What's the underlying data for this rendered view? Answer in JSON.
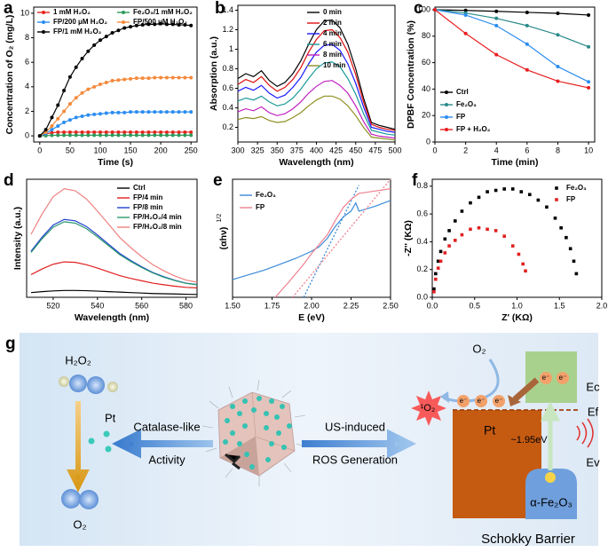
{
  "chart_data": [
    {
      "panel": "a",
      "type": "line",
      "marker": "circle",
      "xlabel": "Time (s)",
      "ylabel": "Concentration of O₂ (mg/L)",
      "x": [
        0,
        10,
        20,
        30,
        40,
        50,
        60,
        70,
        80,
        90,
        100,
        110,
        120,
        130,
        140,
        150,
        160,
        170,
        180,
        190,
        200,
        210,
        220,
        230,
        240,
        250
      ],
      "xlim": [
        -10,
        260
      ],
      "ylim": [
        -0.5,
        10.5
      ],
      "xticks": [
        0,
        50,
        100,
        150,
        200,
        250
      ],
      "yticks": [
        0,
        2,
        4,
        6,
        8,
        10
      ],
      "series": [
        {
          "name": "1 mM H₂O₂",
          "color": "#e8251e",
          "values": [
            0,
            0.15,
            0.25,
            0.3,
            0.3,
            0.3,
            0.3,
            0.3,
            0.3,
            0.3,
            0.3,
            0.3,
            0.3,
            0.3,
            0.3,
            0.3,
            0.3,
            0.3,
            0.3,
            0.3,
            0.3,
            0.3,
            0.3,
            0.3,
            0.3,
            0.3
          ]
        },
        {
          "name": "Fe₂O₃/1 mM H₂O₂",
          "color": "#2e9b5a",
          "values": [
            0,
            0.02,
            0.04,
            0.05,
            0.05,
            0.05,
            0.05,
            0.05,
            0.05,
            0.05,
            0.05,
            0.05,
            0.05,
            0.05,
            0.05,
            0.05,
            0.05,
            0.05,
            0.05,
            0.05,
            0.05,
            0.05,
            0.05,
            0.05,
            0.05,
            0.05
          ]
        },
        {
          "name": "FP/200 μM H₂O₂",
          "color": "#2a8cf0",
          "values": [
            0,
            0.2,
            0.5,
            0.8,
            1.1,
            1.3,
            1.5,
            1.6,
            1.7,
            1.75,
            1.8,
            1.85,
            1.9,
            1.9,
            1.9,
            1.95,
            1.95,
            1.95,
            1.95,
            1.95,
            1.95,
            1.95,
            1.95,
            1.95,
            1.95,
            1.95
          ]
        },
        {
          "name": "FP/500 μM H₂O₂",
          "color": "#f48a3c",
          "values": [
            0,
            0.3,
            0.8,
            1.4,
            2.0,
            2.6,
            3.1,
            3.5,
            3.8,
            4.0,
            4.2,
            4.35,
            4.5,
            4.55,
            4.6,
            4.65,
            4.7,
            4.7,
            4.7,
            4.75,
            4.75,
            4.75,
            4.75,
            4.75,
            4.75,
            4.75
          ]
        },
        {
          "name": "FP/1 mM H₂O₂",
          "color": "#000000",
          "values": [
            0,
            0.5,
            1.5,
            2.5,
            3.7,
            4.8,
            5.6,
            6.3,
            6.9,
            7.4,
            7.8,
            8.1,
            8.4,
            8.6,
            8.8,
            8.9,
            9.0,
            9.05,
            9.1,
            9.1,
            9.15,
            9.1,
            9.1,
            9.05,
            9.05,
            9.0
          ]
        }
      ]
    },
    {
      "panel": "b",
      "type": "line",
      "xlabel": "Wavelength (nm)",
      "ylabel": "Absorption (a.u.)",
      "x": [
        300,
        310,
        320,
        330,
        340,
        350,
        360,
        370,
        380,
        390,
        400,
        410,
        420,
        430,
        440,
        450,
        460,
        470,
        480,
        490,
        500
      ],
      "xlim": [
        300,
        500
      ],
      "ylim": [
        0.05,
        1.45
      ],
      "xticks": [
        300,
        325,
        350,
        375,
        400,
        425,
        450,
        475,
        500
      ],
      "yticks": [
        0.2,
        0.4,
        0.6,
        0.8,
        1.0,
        1.2,
        1.4
      ],
      "series": [
        {
          "name": "0 min",
          "color": "#000000",
          "values": [
            0.7,
            0.75,
            0.72,
            0.78,
            0.68,
            0.62,
            0.66,
            0.75,
            0.88,
            1.05,
            1.2,
            1.29,
            1.3,
            1.22,
            1.05,
            0.8,
            0.5,
            0.25,
            0.22,
            0.2,
            0.18
          ]
        },
        {
          "name": "2 min",
          "color": "#e01010",
          "values": [
            0.64,
            0.69,
            0.66,
            0.72,
            0.63,
            0.57,
            0.61,
            0.69,
            0.81,
            0.97,
            1.1,
            1.19,
            1.2,
            1.12,
            0.97,
            0.74,
            0.46,
            0.23,
            0.2,
            0.18,
            0.17
          ]
        },
        {
          "name": "4 min",
          "color": "#1a1aff",
          "values": [
            0.57,
            0.61,
            0.58,
            0.63,
            0.55,
            0.5,
            0.53,
            0.61,
            0.71,
            0.85,
            0.97,
            1.04,
            1.05,
            0.99,
            0.85,
            0.65,
            0.41,
            0.2,
            0.18,
            0.16,
            0.15
          ]
        },
        {
          "name": "6 min",
          "color": "#1a9a9a",
          "values": [
            0.47,
            0.5,
            0.48,
            0.52,
            0.46,
            0.42,
            0.44,
            0.5,
            0.59,
            0.7,
            0.8,
            0.86,
            0.87,
            0.82,
            0.7,
            0.54,
            0.34,
            0.17,
            0.15,
            0.13,
            0.12
          ]
        },
        {
          "name": "8 min",
          "color": "#c020c0",
          "values": [
            0.36,
            0.39,
            0.37,
            0.41,
            0.35,
            0.32,
            0.34,
            0.39,
            0.46,
            0.55,
            0.62,
            0.67,
            0.68,
            0.63,
            0.55,
            0.42,
            0.26,
            0.13,
            0.11,
            0.1,
            0.09
          ]
        },
        {
          "name": "10 min",
          "color": "#8f8f20",
          "values": [
            0.28,
            0.3,
            0.29,
            0.31,
            0.27,
            0.25,
            0.26,
            0.3,
            0.35,
            0.42,
            0.48,
            0.52,
            0.52,
            0.49,
            0.42,
            0.32,
            0.2,
            0.1,
            0.09,
            0.08,
            0.07
          ]
        }
      ]
    },
    {
      "panel": "c",
      "type": "line",
      "marker": "circle",
      "xlabel": "Time (min)",
      "ylabel": "DPBF Concentration (%)",
      "x": [
        0,
        2,
        4,
        6,
        8,
        10
      ],
      "xlim": [
        0,
        10.4
      ],
      "ylim": [
        0,
        102
      ],
      "xticks": [
        0,
        2,
        4,
        6,
        8,
        10
      ],
      "yticks": [
        0,
        20,
        40,
        60,
        80,
        100
      ],
      "series": [
        {
          "name": "Ctrl",
          "color": "#000000",
          "values": [
            100,
            99.5,
            98.8,
            98,
            97.3,
            96
          ]
        },
        {
          "name": "Fe₂O₃",
          "color": "#2a8a8a",
          "values": [
            100,
            97.5,
            93.5,
            88,
            81,
            72
          ]
        },
        {
          "name": "FP",
          "color": "#2a8cf0",
          "values": [
            100,
            96,
            88,
            74,
            57,
            45.5
          ]
        },
        {
          "name": "FP + H₂O₂",
          "color": "#e81e1e",
          "values": [
            100,
            82,
            66,
            54.5,
            46,
            41
          ]
        }
      ]
    },
    {
      "panel": "d",
      "type": "line",
      "xlabel": "Wavelength (nm)",
      "ylabel": "Intensity (a.u.)",
      "x": [
        510,
        515,
        520,
        525,
        530,
        535,
        540,
        545,
        550,
        555,
        560,
        565,
        570,
        575,
        580,
        585
      ],
      "xlim": [
        508,
        585
      ],
      "ylim": [
        0,
        5
      ],
      "xticks": [
        520,
        540,
        560,
        580
      ],
      "series": [
        {
          "name": "Ctrl",
          "color": "#000000",
          "values": [
            0.2,
            0.24,
            0.27,
            0.29,
            0.29,
            0.28,
            0.26,
            0.24,
            0.22,
            0.2,
            0.18,
            0.16,
            0.15,
            0.14,
            0.13,
            0.12
          ]
        },
        {
          "name": "FP/4 min",
          "color": "#e02020",
          "values": [
            0.96,
            1.2,
            1.4,
            1.5,
            1.48,
            1.38,
            1.24,
            1.08,
            0.92,
            0.8,
            0.7,
            0.6,
            0.53,
            0.47,
            0.42,
            0.4
          ]
        },
        {
          "name": "FP/8 min",
          "color": "#2040d0",
          "values": [
            1.95,
            2.55,
            3.06,
            3.3,
            3.24,
            3.0,
            2.64,
            2.25,
            1.86,
            1.56,
            1.29,
            1.05,
            0.87,
            0.72,
            0.6,
            0.54
          ]
        },
        {
          "name": "FP/H₂O₂/4 min",
          "color": "#2a9a70",
          "values": [
            1.9,
            2.48,
            2.97,
            3.2,
            3.14,
            2.91,
            2.56,
            2.19,
            1.81,
            1.52,
            1.26,
            1.03,
            0.85,
            0.71,
            0.59,
            0.53
          ]
        },
        {
          "name": "FP/H₂O₂/8 min",
          "color": "#f08080",
          "values": [
            2.67,
            3.53,
            4.26,
            4.6,
            4.51,
            4.17,
            3.65,
            3.1,
            2.54,
            2.11,
            1.72,
            1.38,
            1.12,
            0.9,
            0.73,
            0.64
          ]
        }
      ]
    },
    {
      "panel": "e",
      "type": "line",
      "xlabel": "E (eV)",
      "ylabel": "(αhν)",
      "ylabel_sup": "1/2",
      "xlim": [
        1.5,
        2.5
      ],
      "ylim": [
        0,
        1
      ],
      "xticks": [
        {
          "value": 1.5,
          "label": "1.50"
        },
        1.75,
        {
          "value": 2,
          "label": "2.00"
        },
        2.25,
        {
          "value": 2.5,
          "label": "2.50"
        }
      ],
      "series": [
        {
          "name": "Fe₂O₃",
          "color": "#3a8ad8",
          "x": [
            1.5,
            1.6,
            1.7,
            1.8,
            1.9,
            2.0,
            2.05,
            2.1,
            2.15,
            2.2,
            2.25,
            2.28,
            2.3,
            2.4,
            2.5
          ],
          "values": [
            0.15,
            0.19,
            0.23,
            0.28,
            0.33,
            0.39,
            0.43,
            0.5,
            0.6,
            0.68,
            0.73,
            0.8,
            0.73,
            0.77,
            0.82
          ],
          "fit": {
            "x": [
              1.95,
              2.3
            ],
            "y": [
              0,
              0.95
            ]
          }
        },
        {
          "name": "FP",
          "color": "#f08090",
          "x": [
            1.77,
            1.85,
            1.95,
            2.0,
            2.05,
            2.1,
            2.15,
            2.2,
            2.25,
            2.3,
            2.4,
            2.5
          ],
          "values": [
            0,
            0.12,
            0.28,
            0.37,
            0.45,
            0.53,
            0.65,
            0.76,
            0.83,
            0.88,
            0.9,
            0.92
          ],
          "fit": {
            "x": [
              1.88,
              2.5
            ],
            "y": [
              0,
              1.0
            ]
          }
        }
      ]
    },
    {
      "panel": "f",
      "type": "scatter",
      "marker": "square",
      "xlabel": "Z' (KΩ)",
      "ylabel": "-Z'' (KΩ)",
      "xlim": [
        0,
        2
      ],
      "ylim": [
        0,
        0.85
      ],
      "xticks": [
        {
          "value": 0,
          "label": "0.0"
        },
        0.5,
        {
          "value": 1,
          "label": "1.0"
        },
        1.5,
        {
          "value": 2,
          "label": "2.0"
        }
      ],
      "yticks": [
        {
          "value": 0,
          "label": "0.0"
        },
        0.2,
        0.4,
        0.6,
        0.8
      ],
      "series": [
        {
          "name": "Fe₂O₃",
          "color": "#000000",
          "x": [
            0.02,
            0.04,
            0.07,
            0.1,
            0.15,
            0.2,
            0.27,
            0.35,
            0.45,
            0.55,
            0.65,
            0.75,
            0.85,
            0.95,
            1.05,
            1.15,
            1.25,
            1.35,
            1.45,
            1.52,
            1.58,
            1.63,
            1.67,
            1.7
          ],
          "values": [
            0.06,
            0.17,
            0.26,
            0.33,
            0.42,
            0.48,
            0.55,
            0.62,
            0.68,
            0.72,
            0.76,
            0.77,
            0.78,
            0.78,
            0.76,
            0.74,
            0.7,
            0.65,
            0.57,
            0.5,
            0.43,
            0.35,
            0.26,
            0.17
          ]
        },
        {
          "name": "FP",
          "color": "#e02020",
          "x": [
            0.02,
            0.04,
            0.07,
            0.1,
            0.15,
            0.2,
            0.27,
            0.35,
            0.45,
            0.55,
            0.65,
            0.75,
            0.85,
            0.95,
            1.02,
            1.07,
            1.1
          ],
          "values": [
            0.04,
            0.13,
            0.21,
            0.26,
            0.32,
            0.37,
            0.41,
            0.45,
            0.49,
            0.5,
            0.49,
            0.48,
            0.44,
            0.37,
            0.31,
            0.24,
            0.19
          ]
        }
      ]
    }
  ],
  "schematic": {
    "label": "g",
    "h2o2": "H₂O₂",
    "pt_catalyst": "Pt",
    "o2_product": "O₂",
    "left_arrow": [
      "Catalase-like",
      "Activity"
    ],
    "right_arrow": [
      "US-induced",
      "ROS Generation"
    ],
    "o2_reactant": "O₂",
    "singlet_oxygen": "¹O₂",
    "electrons": [
      "e⁻",
      "e⁻",
      "e⁻",
      "e⁻",
      "e⁻"
    ],
    "pt_block": "Pt",
    "ec": "Ec",
    "ef": "Ef",
    "band_gap": "~1.95eV",
    "ev": "Ev",
    "semiconductor": "α-Fe₂O₃",
    "caption": "Schokky Barrier"
  }
}
